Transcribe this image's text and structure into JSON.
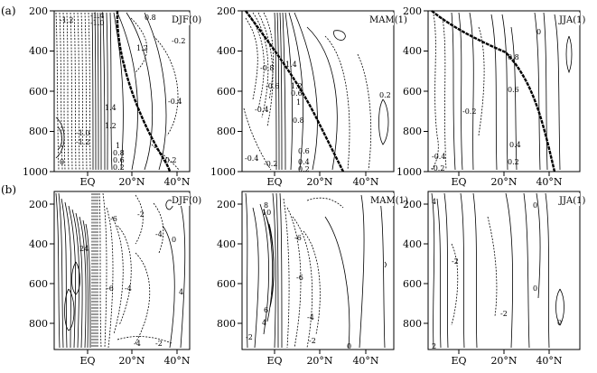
{
  "row_labels": [
    "(a)",
    "(b)"
  ],
  "panels": [
    {
      "row": 0,
      "col": 0,
      "label": "DJF(0)",
      "yticks": [
        "200",
        "400",
        "600",
        "800",
        "1000"
      ],
      "xticks": [
        "EQ",
        "20°N",
        "40°N"
      ],
      "contour_labels": [
        "-1.2",
        "-1.4",
        "-1.0",
        "0.8",
        "1.2",
        "-0.2",
        "1",
        "-0.4",
        "1.4",
        "1.2",
        "-1.0",
        "-1.2",
        "1",
        "0.8",
        "0.6",
        "0.2",
        "-0.2",
        "0"
      ]
    },
    {
      "row": 0,
      "col": 1,
      "label": "MAM(1)",
      "yticks": [
        "200",
        "400",
        "600",
        "800",
        "1000"
      ],
      "xticks": [
        "EQ",
        "20°N",
        "40°N"
      ],
      "contour_labels": [
        "-0.8",
        "-0.6",
        "1.4",
        "1.2",
        "-0.4",
        "1",
        "0.6",
        "0.2",
        "0.8",
        "0.6",
        "0.4",
        "-0.4",
        "-0.2",
        "0.2"
      ]
    },
    {
      "row": 0,
      "col": 2,
      "label": "JJA(1)",
      "yticks": [
        "200",
        "400",
        "600",
        "800",
        "1000"
      ],
      "xticks": [
        "EQ",
        "20°N",
        "40°N"
      ],
      "contour_labels": [
        "0",
        "0.8",
        "0.6",
        "-0.2",
        "-0.4",
        "0.4",
        "0.2",
        "-0.2"
      ]
    },
    {
      "row": 1,
      "col": 0,
      "label": "DJF(0)",
      "yticks": [
        "200",
        "400",
        "600",
        "800"
      ],
      "xticks": [
        "EQ",
        "20°N",
        "40°N"
      ],
      "contour_labels": [
        "-6",
        "-2",
        "-4",
        "0",
        "24",
        "-6",
        "-4",
        "4",
        "-4",
        "-2"
      ]
    },
    {
      "row": 1,
      "col": 1,
      "label": "MAM(1)",
      "yticks": [
        "200",
        "400",
        "600",
        "800"
      ],
      "xticks": [
        "EQ",
        "20°N",
        "40°N"
      ],
      "contour_labels": [
        "8",
        "10",
        "-6",
        "-6",
        "6",
        "4",
        "-4",
        "-2",
        "-2",
        "0"
      ]
    },
    {
      "row": 1,
      "col": 2,
      "label": "JJA(1)",
      "yticks": [
        "200",
        "400",
        "600",
        "800"
      ],
      "xticks": [
        "EQ",
        "20°N",
        "40°N"
      ],
      "contour_labels": [
        "4",
        "0",
        "-2",
        "0",
        "-2",
        "0",
        "2"
      ]
    }
  ]
}
